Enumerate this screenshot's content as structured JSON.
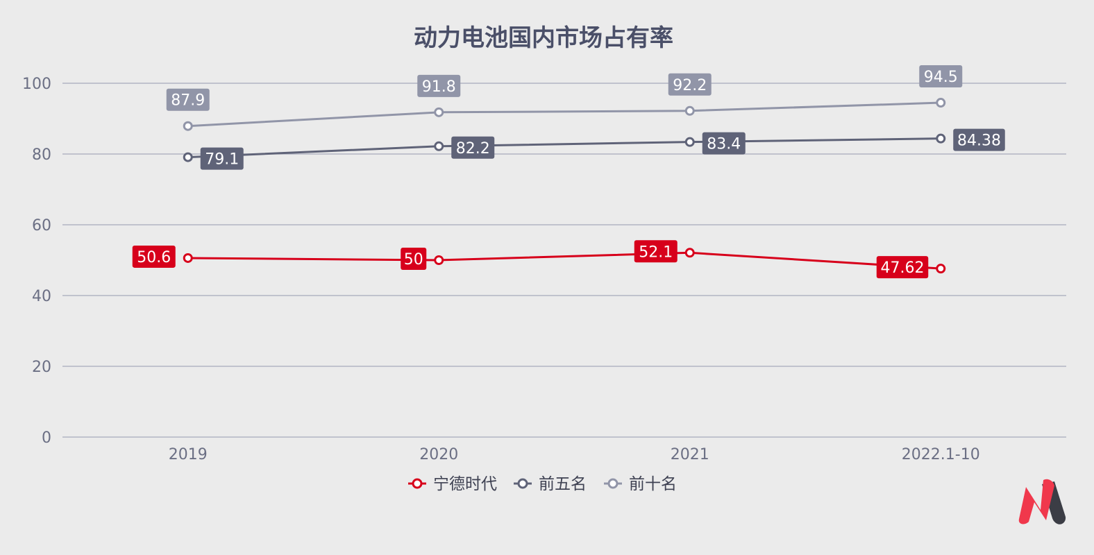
{
  "chart_data": {
    "type": "line",
    "title": "动力电池国内市场占有率",
    "xlabel": "",
    "ylabel": "",
    "categories": [
      "2019",
      "2020",
      "2021",
      "2022.1-10"
    ],
    "ylim": [
      0,
      100
    ],
    "y_ticks": [
      "0",
      "20",
      "40",
      "60",
      "80",
      "100"
    ],
    "grid": true,
    "legend_position": "bottom",
    "series": [
      {
        "name": "宁德时代",
        "values": [
          50.6,
          50,
          52.1,
          47.62
        ],
        "labels": [
          "50.6",
          "50",
          "52.1",
          "47.62"
        ],
        "color": "#d7001b",
        "label_side": "left"
      },
      {
        "name": "前五名",
        "values": [
          79.1,
          82.2,
          83.4,
          84.38
        ],
        "labels": [
          "79.1",
          "82.2",
          "83.4",
          "84.38"
        ],
        "color": "#5f6378",
        "label_side": "right"
      },
      {
        "name": "前十名",
        "values": [
          87.9,
          91.8,
          92.2,
          94.5
        ],
        "labels": [
          "87.9",
          "91.8",
          "92.2",
          "94.5"
        ],
        "color": "#9195a8",
        "label_side": "above"
      }
    ],
    "colors": {
      "background": "#ebebeb",
      "grid": "#a7aabb",
      "axis_text": "#6b6f84",
      "title": "#4a4f68"
    },
    "logo": {
      "icon": "brand-m-logo-icon",
      "primary_color": "#f0384c",
      "secondary_color": "#3b3d45"
    }
  }
}
